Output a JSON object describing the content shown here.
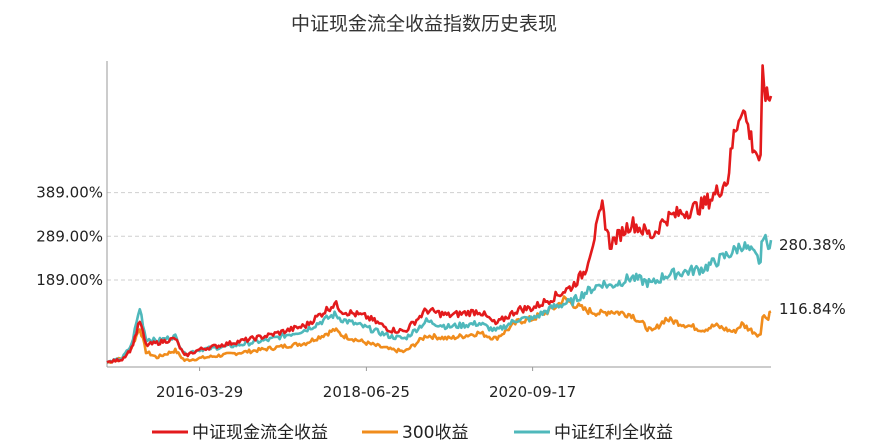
{
  "chart_data": {
    "type": "line",
    "title": "中证现金流全收益指数历史表现",
    "xlabel": "",
    "ylabel": "",
    "y_tick_labels": [
      "389.00%",
      "289.00%",
      "189.00%"
    ],
    "y_tick_values": [
      389,
      289,
      189
    ],
    "x_tick_labels": [
      "2016-03-29",
      "2018-06-25",
      "2020-09-17"
    ],
    "ylim": [
      -10,
      690
    ],
    "xlim": [
      "2014-12-31",
      "2023-11-30"
    ],
    "grid": true,
    "legend_position": "bottom",
    "end_labels": [
      "280.38%",
      "116.84%"
    ],
    "series": [
      {
        "name": "中证现金流全收益",
        "color": "#e31a1c",
        "points": [
          [
            "2014-12-31",
            0
          ],
          [
            "2015-03-15",
            8
          ],
          [
            "2015-04-30",
            32
          ],
          [
            "2015-06-10",
            95
          ],
          [
            "2015-07-10",
            40
          ],
          [
            "2015-09-01",
            45
          ],
          [
            "2015-12-01",
            55
          ],
          [
            "2016-01-15",
            15
          ],
          [
            "2016-03-29",
            30
          ],
          [
            "2016-09-01",
            45
          ],
          [
            "2017-03-01",
            62
          ],
          [
            "2017-09-01",
            85
          ],
          [
            "2018-01-20",
            135
          ],
          [
            "2018-03-01",
            118
          ],
          [
            "2018-06-25",
            105
          ],
          [
            "2018-10-20",
            75
          ],
          [
            "2018-12-31",
            72
          ],
          [
            "2019-04-15",
            120
          ],
          [
            "2019-08-01",
            108
          ],
          [
            "2019-12-31",
            118
          ],
          [
            "2020-03-20",
            88
          ],
          [
            "2020-07-10",
            122
          ],
          [
            "2020-09-17",
            125
          ],
          [
            "2020-12-31",
            150
          ],
          [
            "2021-04-01",
            175
          ],
          [
            "2021-06-01",
            210
          ],
          [
            "2021-08-25",
            355
          ],
          [
            "2021-10-01",
            270
          ],
          [
            "2022-01-15",
            320
          ],
          [
            "2022-04-26",
            290
          ],
          [
            "2022-07-01",
            330
          ],
          [
            "2022-12-31",
            360
          ],
          [
            "2023-03-01",
            385
          ],
          [
            "2023-05-01",
            420
          ],
          [
            "2023-06-01",
            520
          ],
          [
            "2023-07-10",
            590
          ],
          [
            "2023-09-01",
            500
          ],
          [
            "2023-10-10",
            460
          ],
          [
            "2023-10-20",
            660
          ],
          [
            "2023-11-10",
            600
          ],
          [
            "2023-11-30",
            610
          ]
        ]
      },
      {
        "name": "300收益",
        "color": "#f08c1c",
        "points": [
          [
            "2014-12-31",
            0
          ],
          [
            "2015-03-15",
            10
          ],
          [
            "2015-04-30",
            35
          ],
          [
            "2015-06-10",
            80
          ],
          [
            "2015-07-10",
            25
          ],
          [
            "2015-09-01",
            12
          ],
          [
            "2015-12-01",
            28
          ],
          [
            "2016-01-15",
            5
          ],
          [
            "2016-03-29",
            10
          ],
          [
            "2016-09-01",
            20
          ],
          [
            "2017-03-01",
            32
          ],
          [
            "2017-09-01",
            45
          ],
          [
            "2018-01-20",
            75
          ],
          [
            "2018-03-01",
            62
          ],
          [
            "2018-06-25",
            45
          ],
          [
            "2018-10-20",
            30
          ],
          [
            "2018-12-31",
            25
          ],
          [
            "2019-04-15",
            62
          ],
          [
            "2019-08-01",
            55
          ],
          [
            "2019-12-31",
            68
          ],
          [
            "2020-03-20",
            55
          ],
          [
            "2020-07-10",
            95
          ],
          [
            "2020-09-17",
            100
          ],
          [
            "2020-12-31",
            125
          ],
          [
            "2021-02-18",
            145
          ],
          [
            "2021-06-01",
            120
          ],
          [
            "2021-08-25",
            112
          ],
          [
            "2021-10-01",
            118
          ],
          [
            "2022-01-15",
            110
          ],
          [
            "2022-04-26",
            70
          ],
          [
            "2022-07-01",
            100
          ],
          [
            "2022-12-31",
            75
          ],
          [
            "2023-03-01",
            85
          ],
          [
            "2023-06-01",
            70
          ],
          [
            "2023-07-10",
            88
          ],
          [
            "2023-09-01",
            72
          ],
          [
            "2023-10-10",
            62
          ],
          [
            "2023-10-20",
            112
          ],
          [
            "2023-11-10",
            100
          ],
          [
            "2023-11-30",
            116.84
          ]
        ]
      },
      {
        "name": "中证红利全收益",
        "color": "#4fb8bb",
        "points": [
          [
            "2014-12-31",
            0
          ],
          [
            "2015-03-15",
            10
          ],
          [
            "2015-04-30",
            40
          ],
          [
            "2015-06-10",
            125
          ],
          [
            "2015-07-10",
            55
          ],
          [
            "2015-09-01",
            50
          ],
          [
            "2015-12-01",
            60
          ],
          [
            "2016-01-15",
            20
          ],
          [
            "2016-03-29",
            30
          ],
          [
            "2016-09-01",
            38
          ],
          [
            "2017-03-01",
            52
          ],
          [
            "2017-09-01",
            75
          ],
          [
            "2018-01-20",
            110
          ],
          [
            "2018-03-01",
            98
          ],
          [
            "2018-06-25",
            80
          ],
          [
            "2018-10-20",
            60
          ],
          [
            "2018-12-31",
            55
          ],
          [
            "2019-04-15",
            95
          ],
          [
            "2019-08-01",
            82
          ],
          [
            "2019-12-31",
            90
          ],
          [
            "2020-03-20",
            72
          ],
          [
            "2020-07-10",
            100
          ],
          [
            "2020-09-17",
            100
          ],
          [
            "2020-12-31",
            128
          ],
          [
            "2021-04-01",
            140
          ],
          [
            "2021-06-01",
            160
          ],
          [
            "2021-08-25",
            182
          ],
          [
            "2021-10-01",
            175
          ],
          [
            "2022-01-15",
            195
          ],
          [
            "2022-04-26",
            180
          ],
          [
            "2022-07-01",
            200
          ],
          [
            "2022-12-31",
            215
          ],
          [
            "2023-03-01",
            230
          ],
          [
            "2023-06-01",
            255
          ],
          [
            "2023-07-10",
            270
          ],
          [
            "2023-09-01",
            250
          ],
          [
            "2023-10-10",
            230
          ],
          [
            "2023-10-20",
            295
          ],
          [
            "2023-11-10",
            270
          ],
          [
            "2023-11-30",
            280.38
          ]
        ]
      }
    ]
  }
}
